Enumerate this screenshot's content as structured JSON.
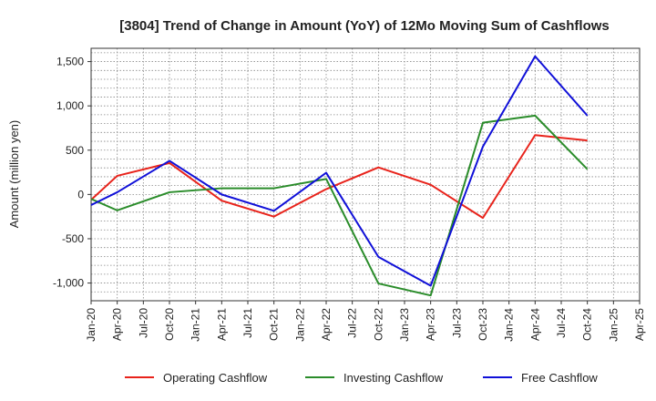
{
  "chart_data": {
    "type": "line",
    "title": "[3804]  Trend of Change in Amount (YoY) of 12Mo Moving Sum of Cashflows",
    "xlabel": "",
    "ylabel": "Amount (million yen)",
    "ylim": [
      -1200,
      1650
    ],
    "yticks": [
      -1000,
      -500,
      0,
      500,
      1000,
      1500
    ],
    "ytick_labels": [
      "-1,000",
      "-500",
      "0",
      "500",
      "1,000",
      "1,500"
    ],
    "categories": [
      "Jan-20",
      "Apr-20",
      "Jul-20",
      "Oct-20",
      "Jan-21",
      "Apr-21",
      "Jul-21",
      "Oct-21",
      "Jan-22",
      "Apr-22",
      "Jul-22",
      "Oct-22",
      "Jan-23",
      "Apr-23",
      "Jul-23",
      "Oct-23",
      "Jan-24",
      "Apr-24",
      "Jul-24",
      "Oct-24",
      "Jan-25",
      "Apr-25"
    ],
    "grid": true,
    "legend_position": "bottom",
    "series": [
      {
        "name": "Operating Cashflow",
        "color": "#e8231b",
        "values": [
          -60,
          210,
          null,
          355,
          null,
          -70,
          null,
          -250,
          null,
          60,
          null,
          305,
          null,
          110,
          null,
          -265,
          null,
          670,
          null,
          610,
          null,
          null
        ]
      },
      {
        "name": "Investing Cashflow",
        "color": "#2a8c2a",
        "values": [
          -50,
          -180,
          null,
          25,
          null,
          70,
          null,
          70,
          null,
          175,
          null,
          -1005,
          null,
          -1140,
          null,
          810,
          null,
          890,
          null,
          285,
          null,
          null
        ]
      },
      {
        "name": "Free Cashflow",
        "color": "#1010d8",
        "values": [
          -120,
          25,
          null,
          380,
          null,
          0,
          null,
          -185,
          null,
          245,
          null,
          -705,
          null,
          -1030,
          null,
          540,
          null,
          1560,
          null,
          890,
          null,
          null
        ]
      }
    ]
  }
}
